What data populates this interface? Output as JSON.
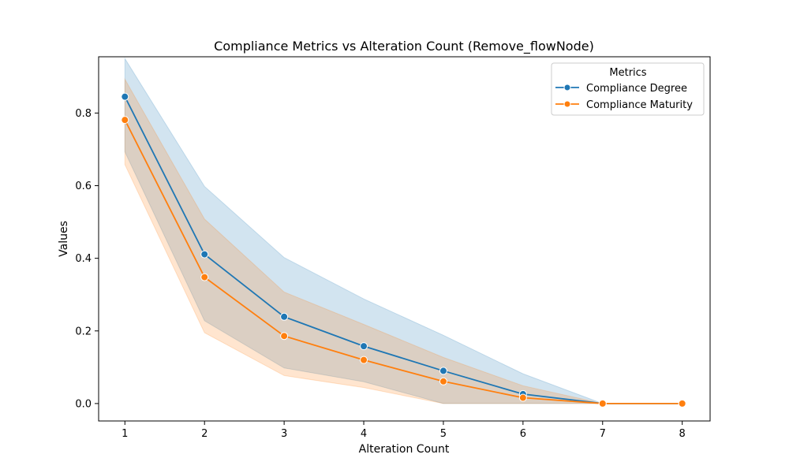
{
  "chart_data": {
    "type": "line",
    "title": "Compliance Metrics vs Alteration Count (Remove_flowNode)",
    "xlabel": "Alteration Count",
    "ylabel": "Values",
    "x": [
      1,
      2,
      3,
      4,
      5,
      6,
      7,
      8
    ],
    "xlim": [
      0.67,
      8.35
    ],
    "ylim": [
      -0.048,
      0.955
    ],
    "xticks": [
      "1",
      "2",
      "3",
      "4",
      "5",
      "6",
      "7",
      "8"
    ],
    "yticks": [
      "0.0",
      "0.2",
      "0.4",
      "0.6",
      "0.8"
    ],
    "grid": false,
    "legend": {
      "title": "Metrics",
      "placement": "top-right"
    },
    "series": [
      {
        "name": "Compliance Degree",
        "color": "#1f77b4",
        "values": [
          0.845,
          0.411,
          0.239,
          0.158,
          0.09,
          0.026,
          0.0,
          0.0
        ],
        "ci_upper": [
          0.95,
          0.598,
          0.402,
          0.288,
          0.188,
          0.082,
          0.0,
          0.0
        ],
        "ci_lower": [
          0.693,
          0.228,
          0.098,
          0.06,
          0.0,
          0.0,
          0.0,
          0.0
        ]
      },
      {
        "name": "Compliance Maturity",
        "color": "#ff7f0e",
        "values": [
          0.781,
          0.348,
          0.186,
          0.12,
          0.061,
          0.016,
          0.0,
          0.0
        ],
        "ci_upper": [
          0.893,
          0.508,
          0.307,
          0.218,
          0.127,
          0.049,
          0.0,
          0.0
        ],
        "ci_lower": [
          0.658,
          0.195,
          0.077,
          0.044,
          0.0,
          0.0,
          0.0,
          0.0
        ]
      }
    ]
  }
}
